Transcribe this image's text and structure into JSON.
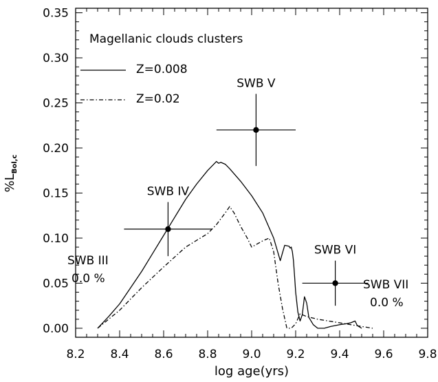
{
  "chart_data": {
    "type": "line",
    "xlabel": "log age(yrs)",
    "ylabel": {
      "main": "%L",
      "sub": "Bol,c"
    },
    "xlim": [
      8.2,
      9.8
    ],
    "ylim": [
      -0.01,
      0.355
    ],
    "x_ticks": [
      "8.2",
      "8.4",
      "8.6",
      "8.8",
      "9.0",
      "9.2",
      "9.4",
      "9.6",
      "9.8"
    ],
    "y_ticks": [
      "0.00",
      "0.05",
      "0.10",
      "0.15",
      "0.20",
      "0.25",
      "0.30",
      "0.35"
    ],
    "grid": false,
    "legend": {
      "title": "Magellanic clouds clusters",
      "placement": "top-left",
      "entries": [
        {
          "label": "Z=0.008",
          "style": "solid"
        },
        {
          "label": "Z=0.02",
          "style": "dash-dot"
        }
      ]
    },
    "series": [
      {
        "name": "Z=0.008",
        "style": "solid",
        "x": [
          8.3,
          8.35,
          8.4,
          8.45,
          8.5,
          8.55,
          8.6,
          8.65,
          8.7,
          8.75,
          8.8,
          8.84,
          8.85,
          8.86,
          8.88,
          8.9,
          8.95,
          9.0,
          9.05,
          9.1,
          9.13,
          9.15,
          9.17,
          9.175,
          9.18,
          9.185,
          9.19,
          9.195,
          9.2,
          9.21,
          9.22,
          9.23,
          9.24,
          9.25,
          9.26,
          9.28,
          9.3,
          9.33,
          9.36,
          9.4,
          9.43,
          9.45,
          9.47,
          9.48,
          9.5
        ],
        "y": [
          0.0,
          0.013,
          0.027,
          0.045,
          0.063,
          0.083,
          0.103,
          0.123,
          0.143,
          0.16,
          0.175,
          0.185,
          0.183,
          0.184,
          0.182,
          0.177,
          0.163,
          0.147,
          0.128,
          0.1,
          0.075,
          0.092,
          0.091,
          0.089,
          0.09,
          0.085,
          0.075,
          0.058,
          0.04,
          0.018,
          0.008,
          0.015,
          0.035,
          0.028,
          0.012,
          0.004,
          0.0,
          0.0,
          0.002,
          0.004,
          0.005,
          0.006,
          0.008,
          0.003,
          0.0
        ]
      },
      {
        "name": "Z=0.02",
        "style": "dash-dot",
        "x": [
          8.3,
          8.4,
          8.5,
          8.6,
          8.7,
          8.8,
          8.84,
          8.88,
          8.9,
          8.92,
          8.95,
          8.98,
          9.0,
          9.05,
          9.08,
          9.1,
          9.12,
          9.14,
          9.16,
          9.18,
          9.2,
          9.22,
          9.25,
          9.3,
          9.35,
          9.4,
          9.45,
          9.5,
          9.55
        ],
        "y": [
          0.0,
          0.02,
          0.045,
          0.068,
          0.09,
          0.105,
          0.115,
          0.128,
          0.135,
          0.128,
          0.113,
          0.1,
          0.09,
          0.097,
          0.1,
          0.085,
          0.05,
          0.022,
          0.0,
          0.0,
          0.005,
          0.016,
          0.013,
          0.01,
          0.008,
          0.006,
          0.004,
          0.002,
          0.0
        ]
      }
    ],
    "points": [
      {
        "label": "SWB IV",
        "x": 8.62,
        "y": 0.11,
        "xerr": 0.2,
        "yerr": 0.03
      },
      {
        "label": "SWB V",
        "x": 9.02,
        "y": 0.22,
        "xerr": 0.18,
        "yerr": 0.04
      },
      {
        "label": "SWB VI",
        "x": 9.38,
        "y": 0.05,
        "xerr": 0.15,
        "yerr": 0.025
      }
    ],
    "annotations": [
      {
        "line1": "SWB III",
        "line2": "0.0 %"
      },
      {
        "line1": "SWB VII",
        "line2": "0.0 %"
      }
    ]
  }
}
